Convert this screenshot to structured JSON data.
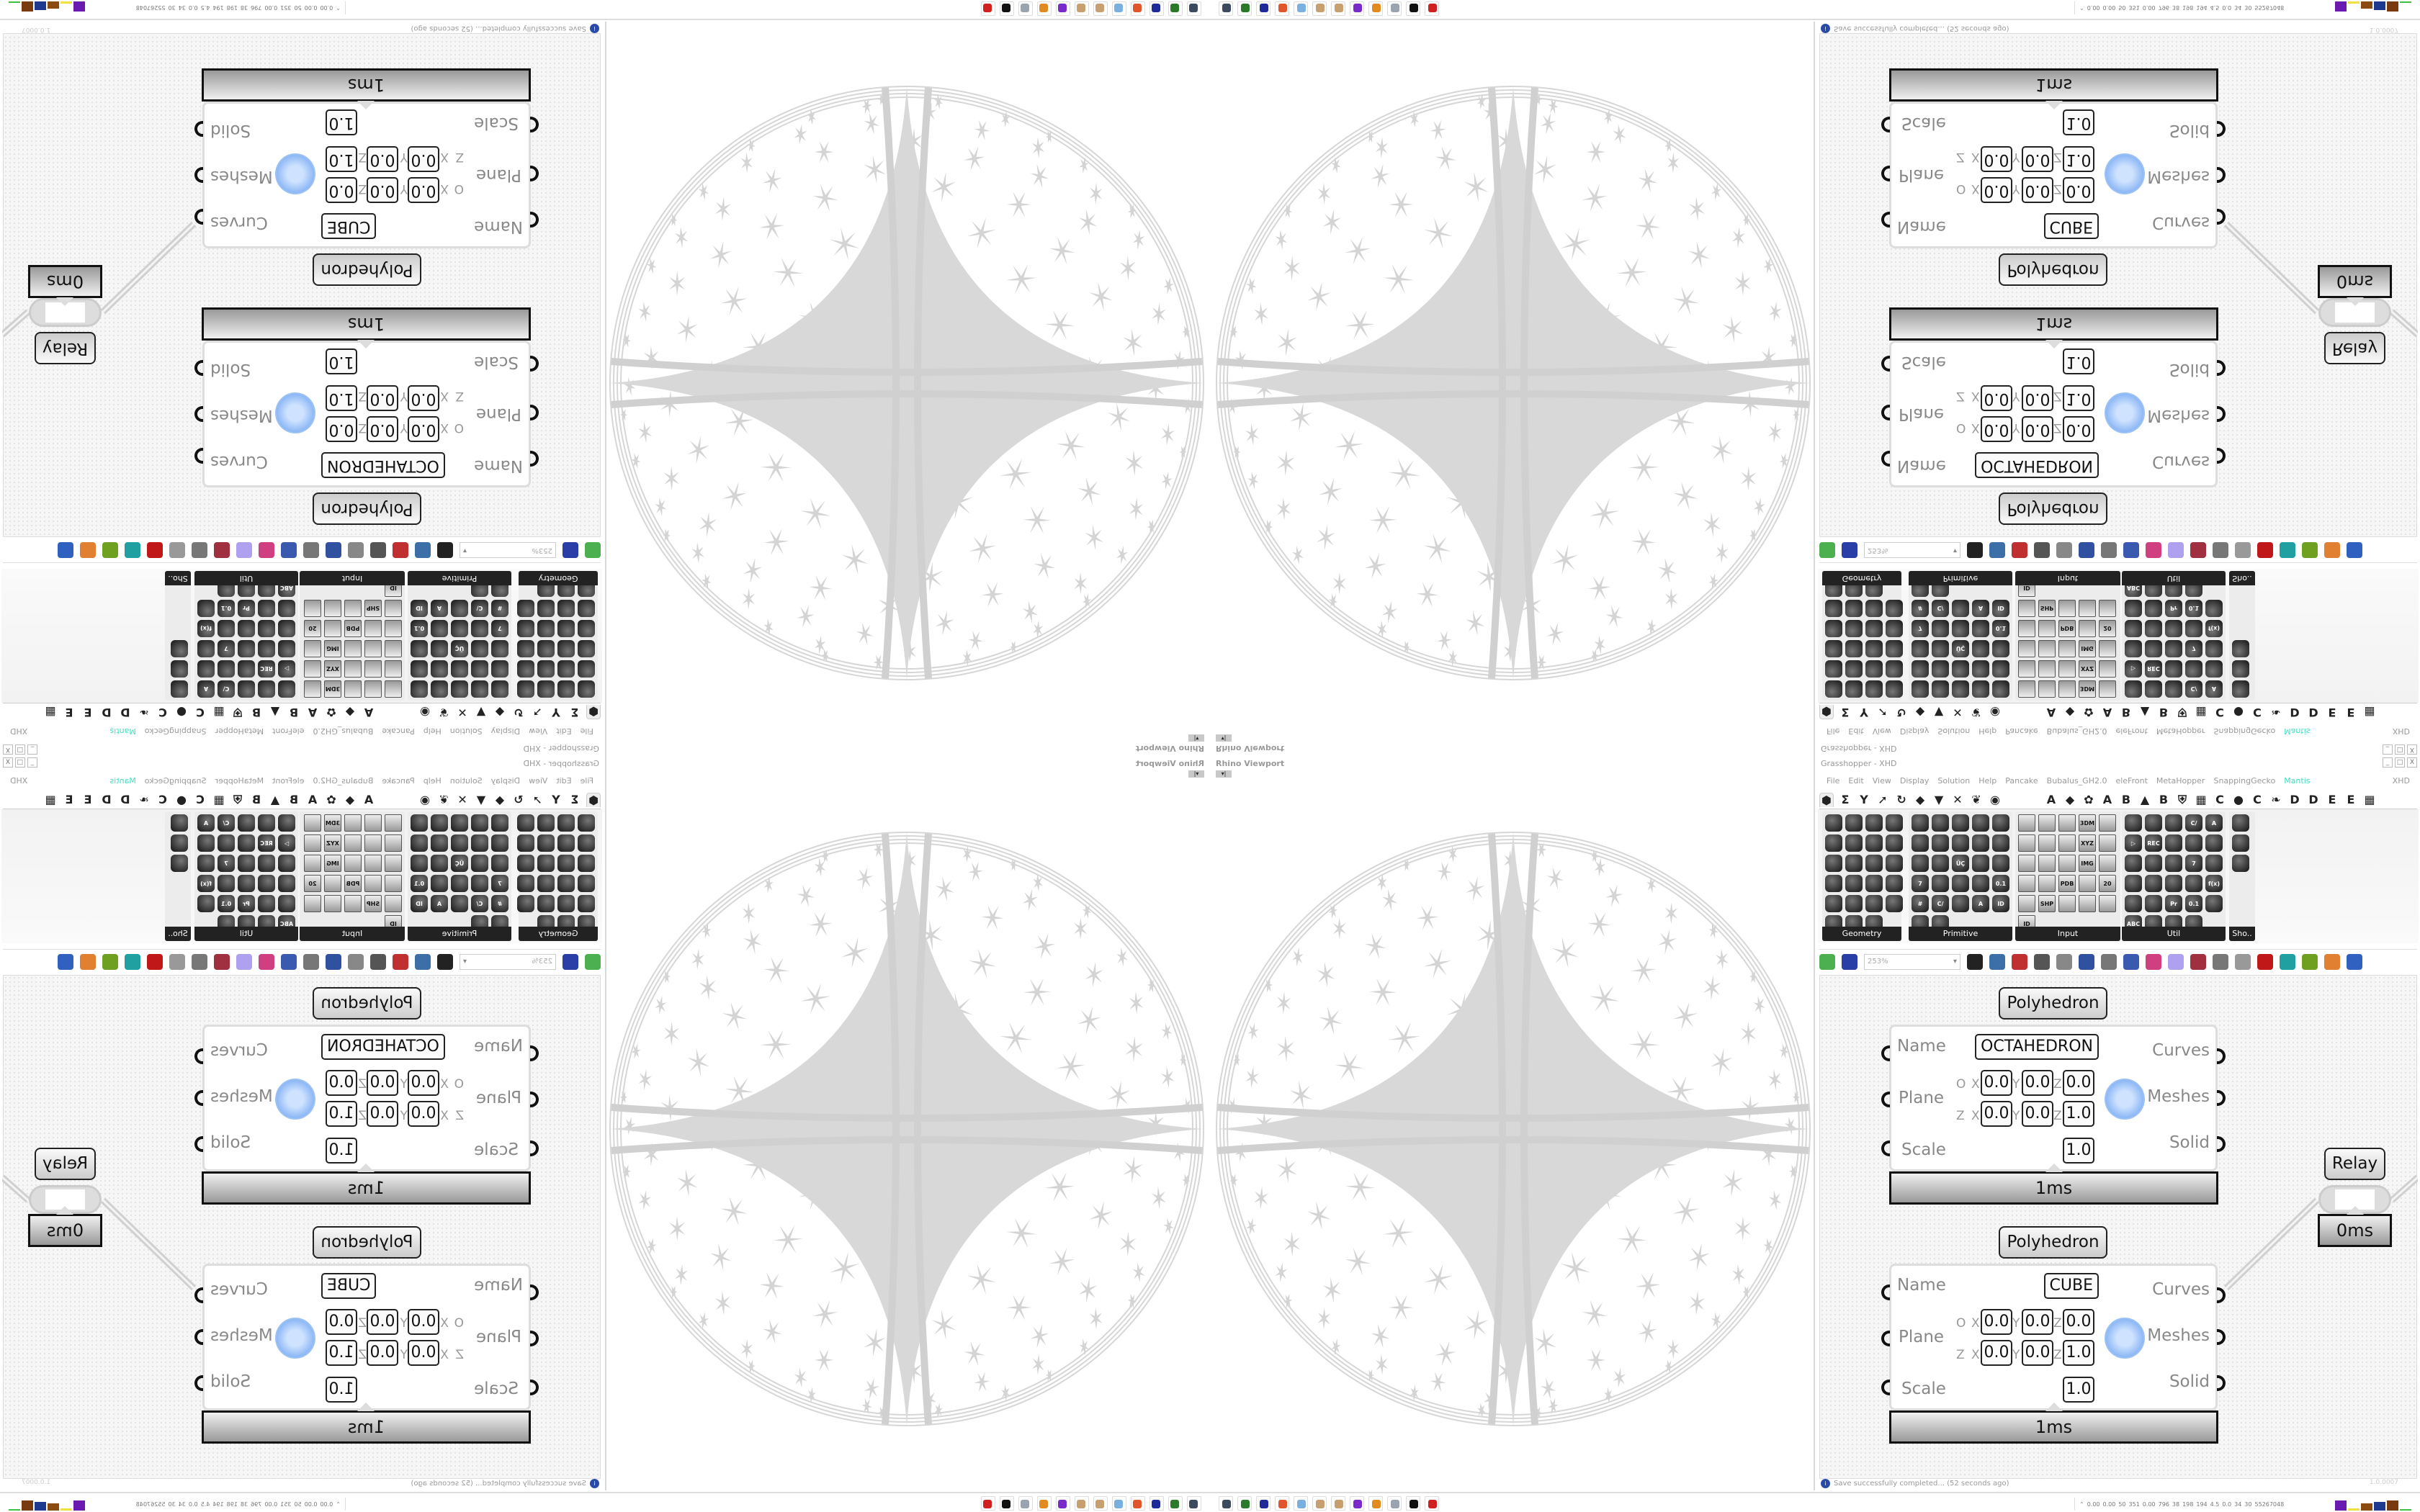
{
  "viewport": {
    "label": "Rhino Viewport",
    "dropdown": "▾|"
  },
  "window": {
    "title": "Grasshopper - XHD",
    "buttons": [
      "_",
      "□",
      "X"
    ]
  },
  "menu": [
    "File",
    "Edit",
    "View",
    "Display",
    "Solution",
    "Help",
    "Pancake",
    "Bubalus_GH2.0",
    "eleFront",
    "MetaHopper",
    "SnappingGecko",
    "Mantis"
  ],
  "menu_right": "XHD",
  "menu_accent": "#3fe0c0",
  "tabs": [
    "⬢",
    "Σ",
    "Y",
    "➚",
    "↻",
    "◆",
    "▼",
    "✕",
    "❦",
    "◉",
    "",
    "",
    "A",
    "◆",
    "✿",
    "A",
    "B",
    "▲",
    "B",
    "⛨",
    "▦",
    "C",
    "●",
    "C",
    "❧",
    "D",
    "D",
    "E",
    "E",
    "▦"
  ],
  "panels": [
    {
      "title": "Geometry",
      "icons": [
        "",
        "",
        "",
        "",
        "",
        "",
        "",
        "",
        "",
        "",
        "",
        "",
        "",
        "",
        "",
        "",
        "",
        "",
        "",
        "",
        "",
        "",
        ""
      ]
    },
    {
      "title": "Primitive",
      "icons": [
        "",
        "",
        "",
        "",
        "",
        "",
        "",
        "",
        "",
        "",
        "",
        "",
        "ÜÇ",
        "",
        "",
        "7",
        "",
        "",
        "",
        "0.1",
        "#",
        "C/",
        "",
        "A",
        "ID",
        "",
        ""
      ]
    },
    {
      "title": "Input",
      "icons": [
        "",
        "",
        "",
        "3DM",
        "",
        "",
        "",
        "",
        "XYZ",
        "",
        "",
        "",
        "",
        "IMG",
        "",
        "",
        "",
        "PDB",
        "",
        "20",
        "",
        "SHP",
        "",
        "",
        "",
        "ID"
      ]
    },
    {
      "title": "Util",
      "icons": [
        "",
        "",
        "",
        "C/",
        "A",
        "▷",
        "REC",
        "",
        "",
        "",
        "",
        "",
        "",
        "7",
        "",
        "",
        "",
        "",
        "",
        "f(x)",
        "",
        "",
        "Pr",
        "0.1",
        "",
        "ABC",
        "",
        "",
        ""
      ]
    },
    {
      "title": "Sho..",
      "icons": [
        "",
        "",
        ""
      ]
    }
  ],
  "toolbar": {
    "zoom": "253%",
    "icons": [
      "open-icon",
      "save-icon",
      "zoom-extents-icon",
      "preview-icon",
      "sketch-icon",
      "cluster-icon",
      "gh-python-icon",
      "gha-icon",
      "canvas-icon",
      "search-icon",
      "package-icon",
      "bulb-icon",
      "wires-icon",
      "sphere-icon",
      "link-icon",
      "red-box-icon",
      "teal-shape-icon",
      "green-shape-icon",
      "orange-sphere-icon",
      "blue-sphere-icon"
    ]
  },
  "components": [
    {
      "title": "Polyhedron",
      "name_value": "OCTAHEDRON",
      "origin": [
        "0.0",
        "0.0",
        "0.0"
      ],
      "zaxis": [
        "0.0",
        "0.0",
        "1.0"
      ],
      "scale": "1.0",
      "time": "1ms"
    },
    {
      "title": "Polyhedron",
      "name_value": "CUBE",
      "origin": [
        "0.0",
        "0.0",
        "0.0"
      ],
      "zaxis": [
        "0.0",
        "0.0",
        "1.0"
      ],
      "scale": "1.0",
      "time": "1ms"
    }
  ],
  "component_labels": {
    "inputs": [
      "Name",
      "Plane",
      "Scale"
    ],
    "outputs": [
      "Curves",
      "Meshes",
      "Solid"
    ],
    "row_o": "O",
    "row_z": "Z",
    "axes": [
      "X",
      "Y",
      "Z"
    ]
  },
  "relay": {
    "title": "Relay",
    "time": "0ms"
  },
  "status": {
    "icon": "i",
    "text": "Save successfully completed... (52 seconds ago)",
    "version": "1.0.0007"
  },
  "taskbar": {
    "icons": [
      {
        "name": "rhino-viewport-icon",
        "color": "#3c4a60"
      },
      {
        "name": "terminal-icon",
        "color": "#2a7a2a"
      },
      {
        "name": "save-64-icon",
        "color": "#1e2a9a"
      },
      {
        "name": "firefox-icon",
        "color": "#e0552a"
      },
      {
        "name": "calculator-icon",
        "color": "#7ab0e0"
      },
      {
        "name": "paint-icon",
        "color": "#c8a070"
      },
      {
        "name": "paint-icon-2",
        "color": "#c8a070"
      },
      {
        "name": "tor-icon",
        "color": "#7a2ac8"
      },
      {
        "name": "blender-icon",
        "color": "#e08a20"
      },
      {
        "name": "notepad-icon",
        "color": "#9aa4b0"
      },
      {
        "name": "inkscape-icon",
        "color": "#111111"
      },
      {
        "name": "rhino-red-icon",
        "color": "#d02020"
      }
    ]
  },
  "tray": {
    "values": [
      "0.00",
      "0.00",
      "50",
      "351",
      "0.00",
      "796",
      "38",
      "198",
      "194",
      "4.5",
      "0.0",
      "34",
      "30",
      "55267048"
    ],
    "bars": [
      {
        "color": "#6a1ab0"
      },
      {
        "color": "#f0e040"
      },
      {
        "color": "#8a4a10"
      },
      {
        "color": "#1e3a90"
      },
      {
        "color": "#7a3a10"
      },
      {
        "color": "#40c040"
      }
    ]
  }
}
